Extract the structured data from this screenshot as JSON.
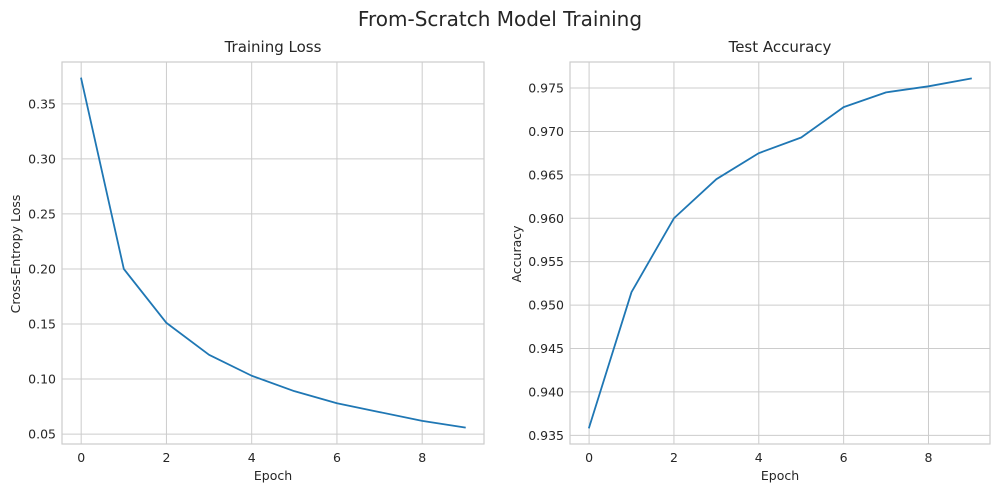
{
  "figure": {
    "title": "From-Scratch Model Training"
  },
  "chart_data": [
    {
      "type": "line",
      "title": "Training Loss",
      "xlabel": "Epoch",
      "ylabel": "Cross-Entropy Loss",
      "x": [
        0,
        1,
        2,
        3,
        4,
        5,
        6,
        7,
        8,
        9
      ],
      "series": [
        {
          "values": [
            0.373,
            0.2,
            0.151,
            0.122,
            0.103,
            0.089,
            0.078,
            0.07,
            0.062,
            0.056
          ],
          "color": "#1f77b4"
        }
      ],
      "xlim": [
        -0.45,
        9.45
      ],
      "ylim": [
        0.041,
        0.388
      ],
      "xticks": [
        0,
        2,
        4,
        6,
        8
      ],
      "xtick_labels": [
        "0",
        "2",
        "4",
        "6",
        "8"
      ],
      "yticks": [
        0.05,
        0.1,
        0.15,
        0.2,
        0.25,
        0.3,
        0.35
      ],
      "ytick_labels": [
        "0.05",
        "0.10",
        "0.15",
        "0.20",
        "0.25",
        "0.30",
        "0.35"
      ],
      "grid": true
    },
    {
      "type": "line",
      "title": "Test Accuracy",
      "xlabel": "Epoch",
      "ylabel": "Accuracy",
      "x": [
        0,
        1,
        2,
        3,
        4,
        5,
        6,
        7,
        8,
        9
      ],
      "series": [
        {
          "values": [
            0.9359,
            0.9515,
            0.96,
            0.9645,
            0.9675,
            0.9693,
            0.9728,
            0.9745,
            0.9752,
            0.9761
          ],
          "color": "#1f77b4"
        }
      ],
      "xlim": [
        -0.45,
        9.45
      ],
      "ylim": [
        0.934,
        0.978
      ],
      "xticks": [
        0,
        2,
        4,
        6,
        8
      ],
      "xtick_labels": [
        "0",
        "2",
        "4",
        "6",
        "8"
      ],
      "yticks": [
        0.935,
        0.94,
        0.945,
        0.95,
        0.955,
        0.96,
        0.965,
        0.97,
        0.975
      ],
      "ytick_labels": [
        "0.935",
        "0.940",
        "0.945",
        "0.950",
        "0.955",
        "0.960",
        "0.965",
        "0.970",
        "0.975"
      ],
      "grid": true
    }
  ]
}
